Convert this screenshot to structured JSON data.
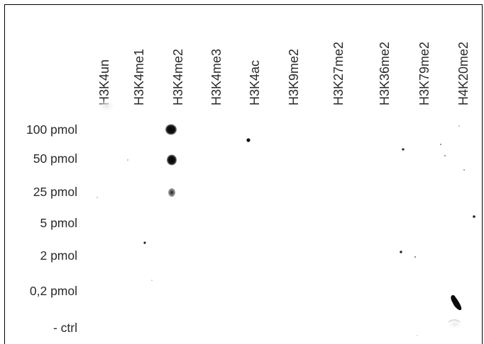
{
  "blot": {
    "columns": [
      "H3K4un",
      "H3K4me1",
      "H3K4me2",
      "H3K4me3",
      "H3K4ac",
      "H3K9me2",
      "H3K27me2",
      "H3K36me2",
      "H3K79me2",
      "H4K20me2"
    ],
    "rows": [
      "100 pmol",
      "50 pmol",
      "25 pmol",
      "5 pmol",
      "2 pmol",
      "0,2 pmol",
      "- ctrl"
    ]
  }
}
